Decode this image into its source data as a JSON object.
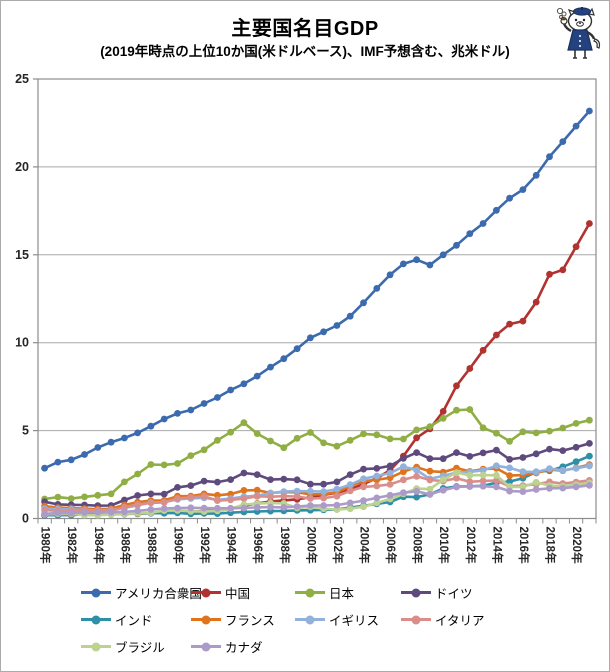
{
  "header": {
    "title": "主要国名目GDP",
    "subtitle": "(2019年時点の上位10か国(米ドルベース)、IMF予想含む、兆米ドル)"
  },
  "icons": {
    "mascot": "painter-cat-mascot"
  },
  "chart_data": {
    "type": "line",
    "title": "主要国名目GDP",
    "subtitle": "(2019年時点の上位10か国(米ドルベース)、IMF予想含む、兆米ドル)",
    "unit": "兆米ドル",
    "marker": "circle",
    "grid": "horizontal",
    "legend_position": "bottom",
    "ylim": [
      0,
      25
    ],
    "yticks": [
      0,
      5,
      10,
      15,
      20,
      25
    ],
    "x": [
      1980,
      1981,
      1982,
      1983,
      1984,
      1985,
      1986,
      1987,
      1988,
      1989,
      1990,
      1991,
      1992,
      1993,
      1994,
      1995,
      1996,
      1997,
      1998,
      1999,
      2000,
      2001,
      2002,
      2003,
      2004,
      2005,
      2006,
      2007,
      2008,
      2009,
      2010,
      2011,
      2012,
      2013,
      2014,
      2015,
      2016,
      2017,
      2018,
      2019,
      2020,
      2021
    ],
    "x_tick_labels": [
      "1980年",
      "1982年",
      "1984年",
      "1986年",
      "1988年",
      "1990年",
      "1992年",
      "1994年",
      "1996年",
      "1998年",
      "2000年",
      "2002年",
      "2004年",
      "2006年",
      "2008年",
      "2010年",
      "2012年",
      "2014年",
      "2016年",
      "2018年",
      "2020年"
    ],
    "series": [
      {
        "id": "usa",
        "name": "アメリカ合衆国",
        "color": "#3C6AAE",
        "values": [
          2.86,
          3.21,
          3.34,
          3.64,
          4.04,
          4.34,
          4.58,
          4.87,
          5.25,
          5.66,
          5.98,
          6.17,
          6.54,
          6.88,
          7.31,
          7.66,
          8.1,
          8.61,
          9.09,
          9.66,
          10.28,
          10.62,
          10.98,
          11.51,
          12.27,
          13.09,
          13.86,
          14.48,
          14.72,
          14.42,
          15.0,
          15.54,
          16.2,
          16.78,
          17.53,
          18.22,
          18.71,
          19.52,
          20.58,
          21.44,
          22.32,
          23.18
        ]
      },
      {
        "id": "china",
        "name": "中国",
        "color": "#B23230",
        "values": [
          0.19,
          0.2,
          0.2,
          0.23,
          0.26,
          0.31,
          0.3,
          0.27,
          0.31,
          0.35,
          0.36,
          0.38,
          0.43,
          0.44,
          0.56,
          0.73,
          0.86,
          0.96,
          1.03,
          1.09,
          1.21,
          1.34,
          1.47,
          1.66,
          1.96,
          2.29,
          2.75,
          3.55,
          4.59,
          5.1,
          6.09,
          7.55,
          8.53,
          9.57,
          10.44,
          11.06,
          11.23,
          12.31,
          13.89,
          14.14,
          15.46,
          16.78
        ]
      },
      {
        "id": "japan",
        "name": "日本",
        "color": "#8FAE44",
        "values": [
          1.11,
          1.22,
          1.13,
          1.23,
          1.32,
          1.4,
          2.08,
          2.53,
          3.07,
          3.05,
          3.13,
          3.58,
          3.91,
          4.45,
          4.91,
          5.45,
          4.83,
          4.41,
          4.03,
          4.56,
          4.89,
          4.3,
          4.11,
          4.45,
          4.81,
          4.76,
          4.53,
          4.52,
          5.04,
          5.23,
          5.7,
          6.16,
          6.2,
          5.16,
          4.85,
          4.39,
          4.93,
          4.87,
          4.97,
          5.15,
          5.41,
          5.59
        ]
      },
      {
        "id": "germany",
        "name": "ドイツ",
        "color": "#5F4A7E",
        "values": [
          0.95,
          0.8,
          0.78,
          0.77,
          0.73,
          0.74,
          1.05,
          1.31,
          1.4,
          1.39,
          1.77,
          1.87,
          2.13,
          2.07,
          2.21,
          2.59,
          2.5,
          2.21,
          2.24,
          2.2,
          1.95,
          1.95,
          2.08,
          2.5,
          2.81,
          2.85,
          2.99,
          3.42,
          3.75,
          3.41,
          3.4,
          3.75,
          3.53,
          3.73,
          3.89,
          3.36,
          3.47,
          3.68,
          3.95,
          3.86,
          4.05,
          4.27
        ]
      },
      {
        "id": "india",
        "name": "インド",
        "color": "#2E8FA8",
        "values": [
          0.19,
          0.19,
          0.2,
          0.22,
          0.21,
          0.23,
          0.25,
          0.28,
          0.3,
          0.3,
          0.32,
          0.27,
          0.29,
          0.28,
          0.33,
          0.37,
          0.4,
          0.42,
          0.43,
          0.46,
          0.47,
          0.49,
          0.52,
          0.62,
          0.72,
          0.83,
          0.94,
          1.24,
          1.22,
          1.37,
          1.71,
          1.82,
          1.83,
          1.86,
          2.04,
          2.1,
          2.29,
          2.65,
          2.72,
          2.94,
          3.23,
          3.55
        ]
      },
      {
        "id": "france",
        "name": "フランス",
        "color": "#E0731C",
        "values": [
          0.7,
          0.62,
          0.59,
          0.56,
          0.53,
          0.55,
          0.77,
          0.93,
          1.02,
          1.03,
          1.27,
          1.27,
          1.4,
          1.32,
          1.39,
          1.6,
          1.61,
          1.45,
          1.5,
          1.49,
          1.37,
          1.38,
          1.49,
          1.84,
          2.12,
          2.2,
          2.32,
          2.66,
          2.92,
          2.69,
          2.64,
          2.86,
          2.68,
          2.81,
          2.85,
          2.44,
          2.47,
          2.59,
          2.78,
          2.72,
          2.88,
          3.06
        ]
      },
      {
        "id": "uk",
        "name": "イギリス",
        "color": "#92B1DC",
        "values": [
          0.56,
          0.54,
          0.52,
          0.49,
          0.46,
          0.49,
          0.6,
          0.75,
          0.91,
          0.93,
          1.09,
          1.14,
          1.18,
          1.06,
          1.14,
          1.24,
          1.3,
          1.44,
          1.53,
          1.56,
          1.55,
          1.53,
          1.67,
          1.92,
          2.26,
          2.42,
          2.58,
          2.95,
          2.76,
          2.25,
          2.43,
          2.61,
          2.65,
          2.74,
          3.0,
          2.88,
          2.66,
          2.64,
          2.83,
          2.74,
          2.85,
          3.0
        ]
      },
      {
        "id": "italy",
        "name": "イタリア",
        "color": "#D98E8C",
        "values": [
          0.48,
          0.44,
          0.43,
          0.45,
          0.44,
          0.45,
          0.64,
          0.8,
          0.89,
          0.92,
          1.14,
          1.2,
          1.27,
          1.02,
          1.06,
          1.13,
          1.26,
          1.24,
          1.27,
          1.25,
          1.14,
          1.16,
          1.27,
          1.57,
          1.8,
          1.85,
          1.94,
          2.2,
          2.4,
          2.19,
          2.13,
          2.29,
          2.09,
          2.14,
          2.16,
          1.83,
          1.87,
          1.95,
          2.08,
          1.99,
          2.07,
          2.17
        ]
      },
      {
        "id": "brazil",
        "name": "ブラジル",
        "color": "#BCD291",
        "values": [
          0.24,
          0.26,
          0.27,
          0.19,
          0.19,
          0.22,
          0.27,
          0.29,
          0.33,
          0.45,
          0.46,
          0.41,
          0.39,
          0.44,
          0.56,
          0.79,
          0.85,
          0.88,
          0.86,
          0.6,
          0.66,
          0.56,
          0.51,
          0.56,
          0.67,
          0.89,
          1.11,
          1.4,
          1.7,
          1.67,
          2.21,
          2.61,
          2.46,
          2.47,
          2.46,
          1.8,
          1.8,
          2.06,
          1.87,
          1.84,
          1.93,
          2.02
        ]
      },
      {
        "id": "canada",
        "name": "カナダ",
        "color": "#AC9BC9",
        "values": [
          0.27,
          0.31,
          0.31,
          0.34,
          0.36,
          0.36,
          0.38,
          0.43,
          0.51,
          0.57,
          0.59,
          0.61,
          0.59,
          0.58,
          0.58,
          0.6,
          0.63,
          0.65,
          0.63,
          0.68,
          0.74,
          0.74,
          0.76,
          0.89,
          1.02,
          1.17,
          1.32,
          1.47,
          1.55,
          1.37,
          1.61,
          1.79,
          1.82,
          1.84,
          1.8,
          1.56,
          1.53,
          1.65,
          1.72,
          1.73,
          1.8,
          1.89
        ]
      }
    ],
    "style": {
      "grid_color": "#a8a8a8",
      "axis_color": "#8c8c8c",
      "tick_label_color": "#262626"
    }
  }
}
